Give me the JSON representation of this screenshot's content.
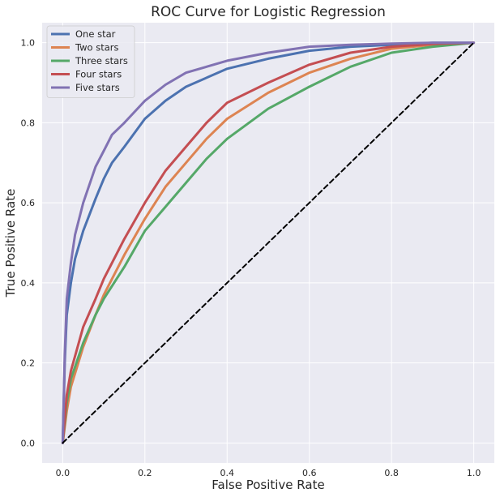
{
  "chart_data": {
    "type": "line",
    "title": "ROC Curve for Logistic Regression",
    "xlabel": "False Positive Rate",
    "ylabel": "True Positive Rate",
    "xlim": [
      -0.05,
      1.05
    ],
    "ylim": [
      -0.05,
      1.05
    ],
    "xticks": [
      0.0,
      0.2,
      0.4,
      0.6,
      0.8,
      1.0
    ],
    "yticks": [
      0.0,
      0.2,
      0.4,
      0.6,
      0.8,
      1.0
    ],
    "xtick_labels": [
      "0.0",
      "0.2",
      "0.4",
      "0.6",
      "0.8",
      "1.0"
    ],
    "ytick_labels": [
      "0.0",
      "0.2",
      "0.4",
      "0.6",
      "0.8",
      "1.0"
    ],
    "grid": true,
    "legend_position": "top-left",
    "background_color": "#eaeaf2",
    "series": [
      {
        "name": "One star",
        "color": "#4c72b0",
        "x": [
          0,
          0.005,
          0.01,
          0.02,
          0.03,
          0.05,
          0.08,
          0.1,
          0.12,
          0.15,
          0.2,
          0.25,
          0.3,
          0.4,
          0.5,
          0.6,
          0.7,
          0.8,
          0.9,
          1.0
        ],
        "y": [
          0,
          0.2,
          0.32,
          0.4,
          0.46,
          0.53,
          0.61,
          0.66,
          0.7,
          0.74,
          0.81,
          0.855,
          0.89,
          0.935,
          0.96,
          0.98,
          0.99,
          0.995,
          1.0,
          1.0
        ]
      },
      {
        "name": "Two stars",
        "color": "#dd8452",
        "x": [
          0,
          0.01,
          0.02,
          0.05,
          0.08,
          0.1,
          0.15,
          0.2,
          0.25,
          0.3,
          0.35,
          0.4,
          0.5,
          0.6,
          0.7,
          0.8,
          0.9,
          1.0
        ],
        "y": [
          0,
          0.08,
          0.14,
          0.24,
          0.32,
          0.37,
          0.47,
          0.56,
          0.64,
          0.7,
          0.76,
          0.81,
          0.875,
          0.925,
          0.96,
          0.985,
          0.995,
          1.0
        ]
      },
      {
        "name": "Three stars",
        "color": "#55a868",
        "x": [
          0,
          0.01,
          0.02,
          0.05,
          0.08,
          0.1,
          0.15,
          0.2,
          0.25,
          0.3,
          0.35,
          0.4,
          0.5,
          0.6,
          0.7,
          0.8,
          0.9,
          1.0
        ],
        "y": [
          0,
          0.1,
          0.16,
          0.25,
          0.32,
          0.36,
          0.44,
          0.53,
          0.59,
          0.65,
          0.71,
          0.76,
          0.835,
          0.89,
          0.94,
          0.975,
          0.99,
          1.0
        ]
      },
      {
        "name": "Four stars",
        "color": "#c44e52",
        "x": [
          0,
          0.01,
          0.02,
          0.05,
          0.08,
          0.1,
          0.15,
          0.2,
          0.25,
          0.3,
          0.35,
          0.4,
          0.5,
          0.6,
          0.7,
          0.8,
          0.9,
          1.0
        ],
        "y": [
          0,
          0.12,
          0.18,
          0.29,
          0.36,
          0.41,
          0.51,
          0.6,
          0.68,
          0.74,
          0.8,
          0.85,
          0.9,
          0.945,
          0.975,
          0.99,
          0.997,
          1.0
        ]
      },
      {
        "name": "Five stars",
        "color": "#8172b3",
        "x": [
          0,
          0.005,
          0.01,
          0.02,
          0.03,
          0.05,
          0.08,
          0.1,
          0.12,
          0.15,
          0.2,
          0.25,
          0.3,
          0.4,
          0.5,
          0.6,
          0.7,
          0.8,
          0.9,
          1.0
        ],
        "y": [
          0,
          0.22,
          0.36,
          0.45,
          0.52,
          0.6,
          0.69,
          0.73,
          0.77,
          0.8,
          0.855,
          0.895,
          0.925,
          0.955,
          0.975,
          0.99,
          0.995,
          0.998,
          1.0,
          1.0
        ]
      },
      {
        "name": "",
        "color": "#000000",
        "dashed": true,
        "x": [
          0,
          1
        ],
        "y": [
          0,
          1
        ]
      }
    ]
  }
}
